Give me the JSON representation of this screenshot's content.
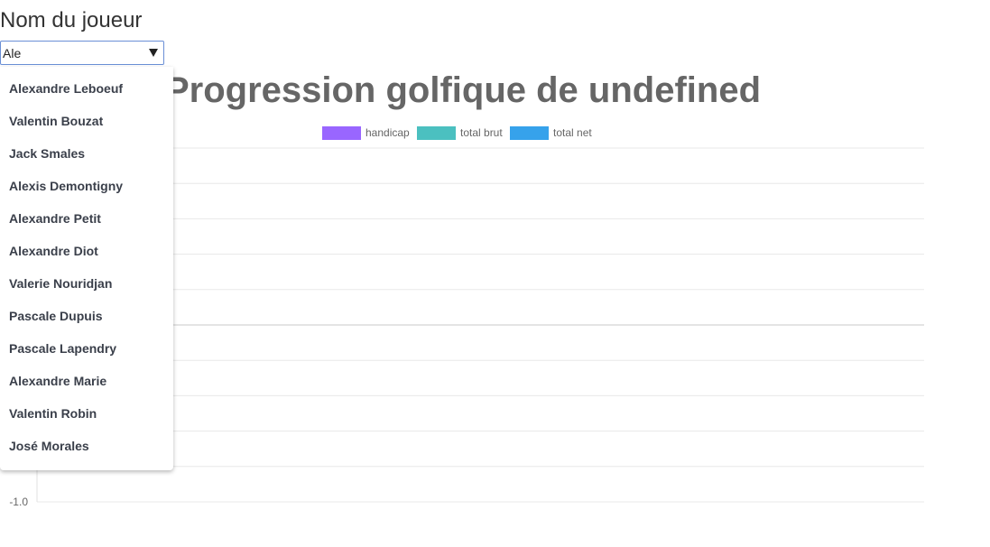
{
  "form": {
    "label": "Nom du joueur",
    "player_input_value": "Ale"
  },
  "suggestions": [
    "Alexandre Leboeuf",
    "Valentin Bouzat",
    "Jack Smales",
    "Alexis Demontigny",
    "Alexandre Petit",
    "Alexandre Diot",
    "Valerie Nouridjan",
    "Pascale Dupuis",
    "Pascale Lapendry",
    "Alexandre Marie",
    "Valentin Robin",
    "José Morales"
  ],
  "chart_data": {
    "type": "bar",
    "title": "Progression golfique de undefined",
    "categories": [],
    "series": [
      {
        "name": "handicap",
        "color": "#9966ff",
        "values": []
      },
      {
        "name": "total brut",
        "color": "#4bc0c0",
        "values": []
      },
      {
        "name": "total net",
        "color": "#36a2eb",
        "values": []
      }
    ],
    "ylim": [
      -1.0,
      1.0
    ],
    "yticks": [
      1.0,
      0.8,
      0.6,
      0.4,
      0.2,
      0.0,
      -0.2,
      -0.4,
      -0.6,
      -0.8,
      -1.0
    ],
    "visible_tick_labels": [
      "-1.0"
    ],
    "legend_position": "top",
    "grid": true
  }
}
